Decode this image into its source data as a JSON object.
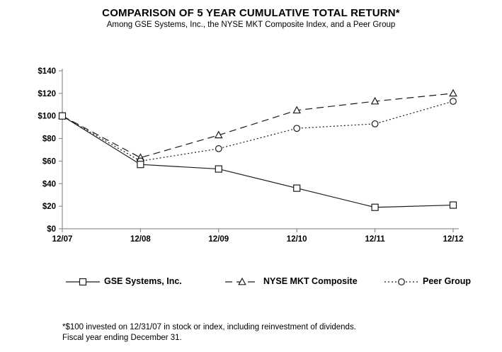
{
  "chart_data": {
    "type": "line",
    "title": "COMPARISON OF 5 YEAR CUMULATIVE TOTAL RETURN*",
    "subtitle": "Among GSE Systems, Inc., the NYSE MKT Composite Index, and a Peer Group",
    "categories": [
      "12/07",
      "12/08",
      "12/09",
      "12/10",
      "12/11",
      "12/12"
    ],
    "series": [
      {
        "name": "GSE Systems, Inc.",
        "marker": "square",
        "line": "solid",
        "values": [
          100,
          57,
          53,
          36,
          19,
          21
        ]
      },
      {
        "name": "NYSE MKT Composite",
        "marker": "triangle",
        "line": "dashed",
        "values": [
          100,
          63,
          83,
          105,
          113,
          120
        ]
      },
      {
        "name": "Peer Group",
        "marker": "circle",
        "line": "dotted",
        "values": [
          100,
          60,
          71,
          89,
          93,
          113
        ]
      }
    ],
    "ylim": [
      0,
      140
    ],
    "y_tick_values": [
      0,
      20,
      40,
      60,
      80,
      100,
      120,
      140
    ],
    "y_tick_labels": [
      "$0",
      "$20",
      "$40",
      "$60",
      "$80",
      "$100",
      "$120",
      "$140"
    ],
    "grid": false,
    "legend_position": "bottom"
  },
  "footnote": {
    "line1": "*$100 invested on 12/31/07 in stock or index, including reinvestment of dividends.",
    "line2": "Fiscal year ending December 31."
  },
  "colors": {
    "series_line": "#1a1a1a",
    "axis": "#7a7a7a",
    "text": "#000000",
    "background": "#ffffff"
  }
}
